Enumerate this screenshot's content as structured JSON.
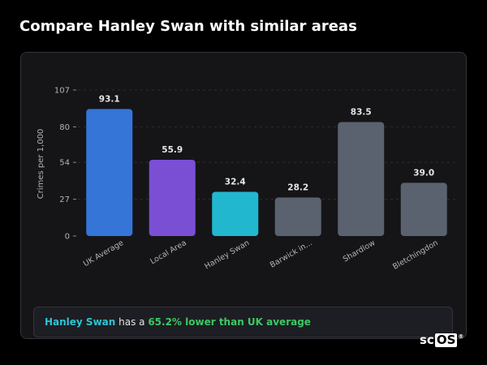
{
  "header": {
    "title": "Compare Hanley Swan with similar areas"
  },
  "chart_data": {
    "type": "bar",
    "title": "",
    "xlabel": "",
    "ylabel": "Crimes per 1,000",
    "categories": [
      "UK Average",
      "Local Area",
      "Hanley Swan",
      "Barwick in...",
      "Shardlow",
      "Bletchingdon"
    ],
    "values": [
      93.1,
      55.9,
      32.4,
      28.2,
      83.5,
      39.0
    ],
    "value_labels": [
      "93.1",
      "55.9",
      "32.4",
      "28.2",
      "83.5",
      "39.0"
    ],
    "colors": [
      "#3575d8",
      "#7b4fd4",
      "#21b8cf",
      "#5a6270",
      "#5a6270",
      "#5a6270"
    ],
    "yticks": [
      0,
      27,
      54,
      80,
      107
    ],
    "ylim": [
      0,
      107
    ],
    "grid": true,
    "legend": "none"
  },
  "summary": {
    "area": "Hanley Swan",
    "text_middle": " has a ",
    "stat": "65.2% lower than UK average"
  },
  "logo": {
    "left": "sc",
    "box": "OS",
    "mark": "®"
  },
  "colors": {
    "background": "#000000",
    "card": "#151518",
    "area_highlight": "#2ec4d2",
    "stat_highlight": "#3cc864"
  }
}
